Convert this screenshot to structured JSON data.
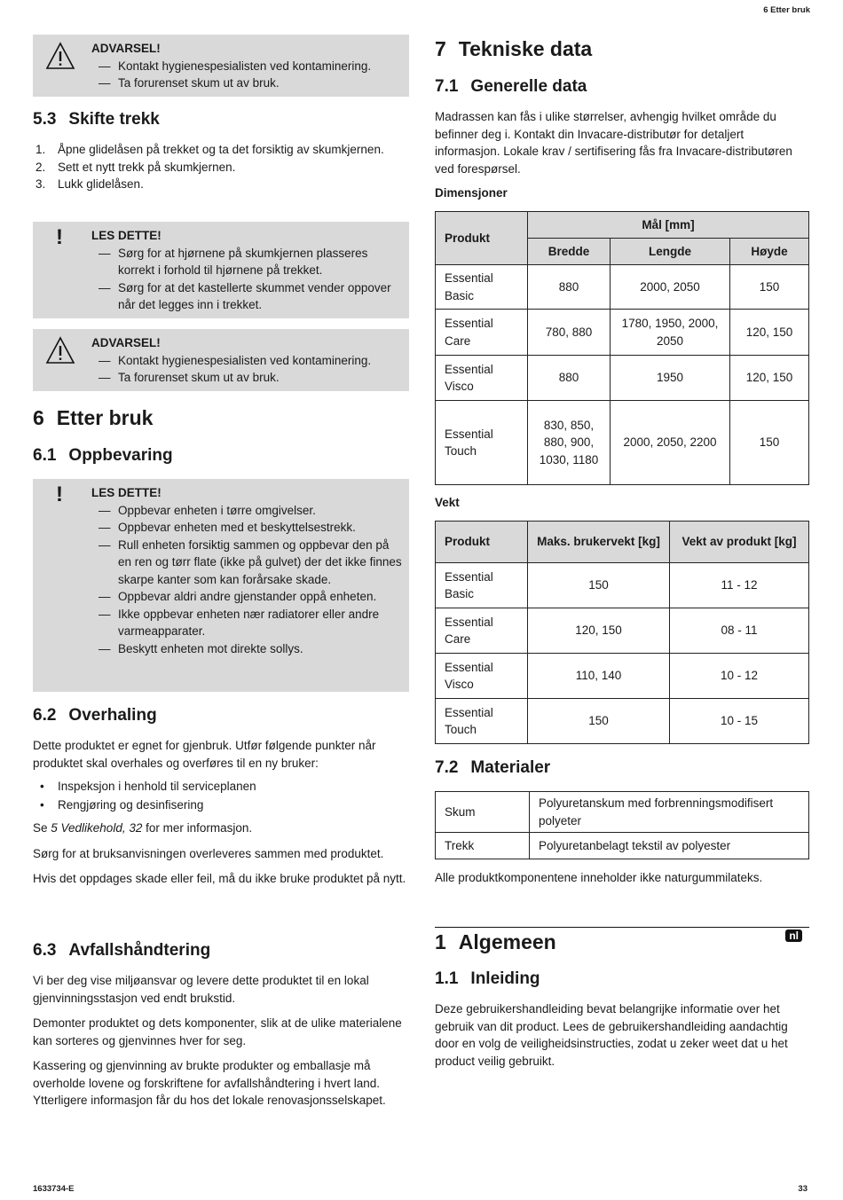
{
  "header": {
    "section": "6   Etter bruk"
  },
  "footer": {
    "doc_id": "1633734-E",
    "page": "33"
  },
  "left": {
    "warning1": {
      "title": "ADVARSEL!",
      "items": [
        "Kontakt hygienespesialisten ved kontaminering.",
        "Ta forurenset skum ut av bruk."
      ]
    },
    "s53": {
      "num": "5.3",
      "title": "Skifte trekk",
      "steps": [
        {
          "n": "1.",
          "text": "Åpne glidelåsen på trekket og ta det forsiktig av skumkjernen."
        },
        {
          "n": "2.",
          "text": "Sett et nytt trekk på skumkjernen."
        },
        {
          "n": "3.",
          "text": "Lukk glidelåsen."
        }
      ]
    },
    "notice1": {
      "title": "LES DETTE!",
      "items": [
        "Sørg for at hjørnene på skumkjernen plasseres korrekt i forhold til hjørnene på trekket.",
        "Sørg for at det kastellerte skummet vender oppover når det legges inn i trekket."
      ]
    },
    "warning2": {
      "title": "ADVARSEL!",
      "items": [
        "Kontakt hygienespesialisten ved kontaminering.",
        "Ta forurenset skum ut av bruk."
      ]
    },
    "s6": {
      "num": "6",
      "title": "Etter bruk"
    },
    "s61": {
      "num": "6.1",
      "title": "Oppbevaring"
    },
    "notice2": {
      "title": "LES DETTE!",
      "items": [
        "Oppbevar enheten i tørre omgivelser.",
        "Oppbevar enheten med et beskyttelsestrekk.",
        "Rull enheten forsiktig sammen og oppbevar den på en ren og tørr flate (ikke på gulvet) der det ikke finnes skarpe kanter som kan forårsake skade.",
        "Oppbevar aldri andre gjenstander oppå enheten.",
        "Ikke oppbevar enheten nær radiatorer eller andre varmeapparater.",
        "Beskytt enheten mot direkte sollys."
      ]
    },
    "s62": {
      "num": "6.2",
      "title": "Overhaling",
      "p1": "Dette produktet er egnet for gjenbruk. Utfør følgende punkter når produktet skal overhales og overføres til en ny bruker:",
      "bullets": [
        "Inspeksjon i henhold til serviceplanen",
        "Rengjøring og desinfisering"
      ],
      "ref_pre": "Se ",
      "ref_link": "5 Vedlikehold, 32",
      "ref_post": " for mer informasjon.",
      "p2": "Sørg for at bruksanvisningen overleveres sammen med produktet.",
      "p3": "Hvis det oppdages skade eller feil, må du ikke bruke produktet på nytt."
    },
    "s63": {
      "num": "6.3",
      "title": "Avfallshåndtering",
      "p1": "Vi ber deg vise miljøansvar og levere dette produktet til en lokal gjenvinningsstasjon ved endt brukstid.",
      "p2": "Demonter produktet og dets komponenter, slik at de ulike materialene kan sorteres og gjenvinnes hver for seg.",
      "p3": "Kassering og gjenvinning av brukte produkter og emballasje må overholde lovene og forskriftene for avfallshåndtering i hvert land. Ytterligere informasjon får du hos det lokale renovasjonsselskapet."
    }
  },
  "right": {
    "s7": {
      "num": "7",
      "title": "Tekniske data"
    },
    "s71": {
      "num": "7.1",
      "title": "Generelle data",
      "p1": "Madrassen kan fås i ulike størrelser, avhengig hvilket område du befinner deg i. Kontakt din Invacare-distributør for detaljert informasjon. Lokale krav / sertifisering fås fra Invacare-distributøren ved forespørsel."
    },
    "dim": {
      "label": "Dimensjoner",
      "h_product": "Produkt",
      "h_group": "Mål [mm]",
      "h_cols": [
        "Bredde",
        "Lengde",
        "Høyde"
      ],
      "rows": [
        [
          "Essential Basic",
          "880",
          "2000, 2050",
          "150"
        ],
        [
          "Essential Care",
          "780, 880",
          "1780, 1950, 2000, 2050",
          "120, 150"
        ],
        [
          "Essential Visco",
          "880",
          "1950",
          "120, 150"
        ],
        [
          "Essential Touch",
          "830, 850, 880, 900, 1030, 1180",
          "2000, 2050, 2200",
          "150"
        ]
      ]
    },
    "weight": {
      "label": "Vekt",
      "headers": [
        "Produkt",
        "Maks. brukervekt [kg]",
        "Vekt av produkt [kg]"
      ],
      "rows": [
        [
          "Essential Basic",
          "150",
          "11 - 12"
        ],
        [
          "Essential Care",
          "120, 150",
          "08 - 11"
        ],
        [
          "Essential Visco",
          "110, 140",
          "10 - 12"
        ],
        [
          "Essential Touch",
          "150",
          "10 - 15"
        ]
      ]
    },
    "s72": {
      "num": "7.2",
      "title": "Materialer",
      "rows": [
        [
          "Skum",
          "Polyuretanskum med forbrenningsmodifisert polyeter"
        ],
        [
          "Trekk",
          "Polyuretanbelagt tekstil av polyester"
        ]
      ],
      "p1": "Alle produktkomponentene inneholder ikke naturgummilateks."
    },
    "nl": {
      "badge": "nl",
      "num": "1",
      "title": "Algemeen"
    },
    "s11": {
      "num": "1.1",
      "title": "Inleiding",
      "p1": "Deze gebruikershandleiding bevat belangrijke informatie over het gebruik van dit product. Lees de gebruikershandleiding aandachtig door en volg de veiligheidsinstructies, zodat u zeker weet dat u het product veilig gebruikt."
    }
  }
}
